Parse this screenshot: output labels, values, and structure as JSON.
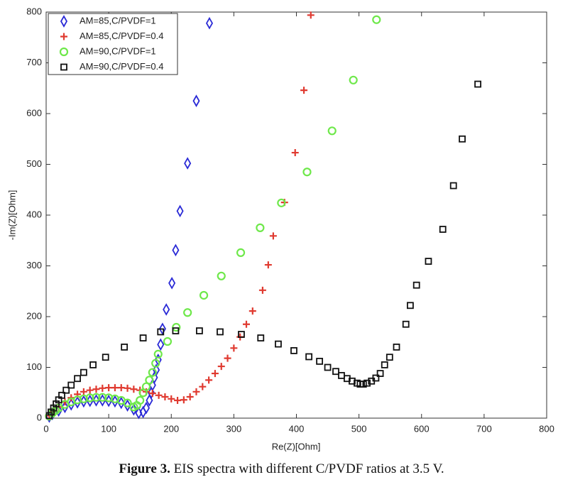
{
  "chart_data": {
    "type": "scatter",
    "xlabel": "Re(Z)[Ohm]",
    "ylabel": "-Im(Z)[Ohm]",
    "xlim": [
      0,
      800
    ],
    "xticks": [
      0,
      100,
      200,
      300,
      400,
      500,
      600,
      700,
      800
    ],
    "ylim": [
      0,
      800
    ],
    "yticks": [
      0,
      100,
      200,
      300,
      400,
      500,
      600,
      700,
      800
    ],
    "grid": false,
    "legend": "upper left",
    "series": [
      {
        "name": "AM=85,C/PVDF=1",
        "color": "#2a2ad6",
        "marker": "diamond",
        "x": [
          5,
          10,
          20,
          30,
          40,
          50,
          60,
          70,
          80,
          90,
          100,
          110,
          120,
          130,
          140,
          148,
          155,
          160,
          165,
          168,
          170,
          173,
          176,
          179,
          183,
          186,
          192,
          201,
          207,
          214,
          226,
          240,
          261
        ],
        "values": [
          3,
          8,
          15,
          22,
          27,
          31,
          33,
          34,
          35,
          35,
          34,
          33,
          30,
          25,
          17,
          10,
          12,
          20,
          35,
          50,
          65,
          80,
          95,
          115,
          145,
          176,
          214,
          266,
          331,
          408,
          502,
          625,
          778
        ]
      },
      {
        "name": "AM=85,C/PVDF=0.4",
        "color": "#e03a30",
        "marker": "plus",
        "x": [
          5,
          10,
          20,
          30,
          40,
          50,
          60,
          70,
          80,
          90,
          100,
          110,
          120,
          130,
          140,
          150,
          160,
          170,
          180,
          190,
          200,
          210,
          220,
          230,
          240,
          250,
          260,
          270,
          280,
          290,
          300,
          310,
          320,
          330,
          346,
          355,
          363,
          381,
          398,
          412,
          423
        ],
        "values": [
          5,
          12,
          22,
          32,
          40,
          47,
          52,
          55,
          57,
          59,
          60,
          60,
          60,
          59,
          57,
          55,
          52,
          49,
          45,
          42,
          38,
          35,
          36,
          42,
          52,
          62,
          75,
          88,
          102,
          118,
          138,
          160,
          185,
          211,
          252,
          302,
          359,
          425,
          523,
          646,
          794
        ]
      },
      {
        "name": "AM=90,C/PVDF=1",
        "color": "#6ee84a",
        "marker": "circle",
        "x": [
          5,
          10,
          15,
          20,
          30,
          40,
          50,
          60,
          70,
          80,
          90,
          100,
          110,
          120,
          130,
          140,
          145,
          150,
          155,
          160,
          165,
          170,
          175,
          179,
          194,
          208,
          226,
          252,
          280,
          311,
          342,
          376,
          417,
          457,
          491,
          528
        ],
        "values": [
          4,
          10,
          15,
          20,
          27,
          32,
          36,
          38,
          40,
          41,
          41,
          40,
          38,
          35,
          30,
          22,
          25,
          35,
          50,
          62,
          75,
          90,
          108,
          126,
          151,
          179,
          208,
          242,
          280,
          326,
          375,
          424,
          485,
          566,
          666,
          785
        ]
      },
      {
        "name": "AM=90,C/PVDF=0.4",
        "color": "#111111",
        "marker": "square",
        "x": [
          5,
          8,
          12,
          16,
          20,
          25,
          32,
          40,
          50,
          60,
          75,
          95,
          125,
          155,
          183,
          207,
          245,
          278,
          312,
          343,
          371,
          396,
          420,
          437,
          450,
          463,
          472,
          481,
          489,
          497,
          502,
          507,
          513,
          520,
          527,
          534,
          541,
          549,
          560,
          575,
          582,
          592,
          611,
          634,
          651,
          665,
          690
        ],
        "values": [
          5,
          12,
          20,
          28,
          36,
          45,
          55,
          65,
          78,
          90,
          105,
          120,
          140,
          158,
          170,
          172,
          172,
          170,
          165,
          158,
          146,
          133,
          121,
          112,
          100,
          92,
          84,
          78,
          73,
          69,
          67,
          67,
          69,
          73,
          79,
          88,
          105,
          120,
          140,
          185,
          222,
          262,
          309,
          372,
          458,
          550,
          658
        ]
      }
    ]
  },
  "caption": {
    "label": "Figure 3.",
    "text": "EIS spectra with different C/PVDF ratios at 3.5 V."
  }
}
